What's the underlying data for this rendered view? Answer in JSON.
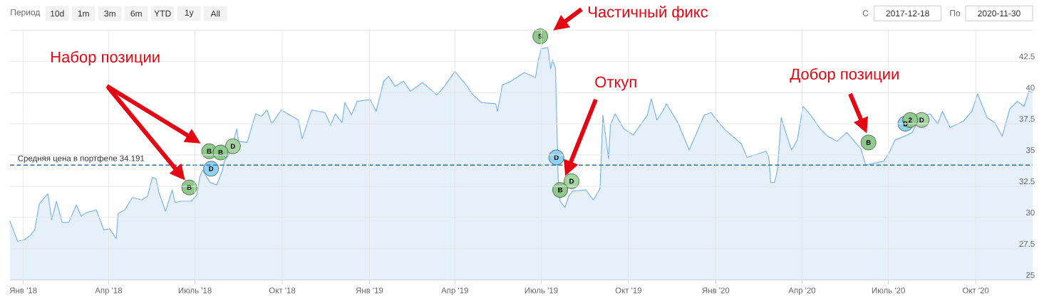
{
  "chart_data": {
    "type": "area",
    "x": [
      "2017-12-18",
      "2017-12-26",
      "2018-01-02",
      "2018-01-09",
      "2018-01-13",
      "2018-01-18",
      "2018-01-27",
      "2018-01-31",
      "2018-02-05",
      "2018-02-11",
      "2018-02-18",
      "2018-02-26",
      "2018-03-03",
      "2018-03-09",
      "2018-03-19",
      "2018-03-27",
      "2018-04-02",
      "2018-04-09",
      "2018-04-11",
      "2018-04-18",
      "2018-04-26",
      "2018-05-06",
      "2018-05-12",
      "2018-05-17",
      "2018-05-21",
      "2018-05-24",
      "2018-05-31",
      "2018-06-07",
      "2018-06-10",
      "2018-06-16",
      "2018-06-27",
      "2018-07-03",
      "2018-07-06",
      "2018-07-09",
      "2018-07-17",
      "2018-07-24",
      "2018-07-30",
      "2018-08-01",
      "2018-08-08",
      "2018-08-14",
      "2018-08-16",
      "2018-08-25",
      "2018-09-03",
      "2018-09-09",
      "2018-09-15",
      "2018-09-20",
      "2018-09-30",
      "2018-10-18",
      "2018-10-22",
      "2018-11-01",
      "2018-11-15",
      "2018-11-21",
      "2018-11-26",
      "2018-12-03",
      "2018-12-06",
      "2018-12-13",
      "2018-12-19",
      "2018-12-29",
      "2019-01-02",
      "2019-01-08",
      "2019-01-16",
      "2019-01-21",
      "2019-01-28",
      "2019-02-06",
      "2019-02-13",
      "2019-02-26",
      "2019-03-13",
      "2019-03-21",
      "2019-04-01",
      "2019-04-14",
      "2019-04-19",
      "2019-04-29",
      "2019-05-14",
      "2019-05-16",
      "2019-05-21",
      "2019-05-30",
      "2019-06-13",
      "2019-06-25",
      "2019-06-28",
      "2019-07-01",
      "2019-07-08",
      "2019-07-11",
      "2019-07-13",
      "2019-07-16",
      "2019-07-19",
      "2019-07-21",
      "2019-07-26",
      "2019-07-30",
      "2019-08-03",
      "2019-08-17",
      "2019-08-25",
      "2019-09-01",
      "2019-09-04",
      "2019-09-10",
      "2019-09-12",
      "2019-09-17",
      "2019-09-26",
      "2019-10-06",
      "2019-10-21",
      "2019-10-25",
      "2019-10-31",
      "2019-11-06",
      "2019-11-10",
      "2019-11-22",
      "2019-11-28",
      "2019-12-04",
      "2019-12-20",
      "2019-12-27",
      "2020-01-02",
      "2020-01-11",
      "2020-01-28",
      "2020-02-03",
      "2020-02-23",
      "2020-02-26",
      "2020-02-28",
      "2020-03-03",
      "2020-03-06",
      "2020-03-10",
      "2020-03-16",
      "2020-03-21",
      "2020-03-27",
      "2020-04-02",
      "2020-04-10",
      "2020-04-20",
      "2020-04-28",
      "2020-05-08",
      "2020-05-18",
      "2020-06-02",
      "2020-06-07",
      "2020-06-26",
      "2020-07-02",
      "2020-07-08",
      "2020-07-18",
      "2020-07-26",
      "2020-08-03",
      "2020-08-14",
      "2020-08-22",
      "2020-08-27",
      "2020-09-04",
      "2020-09-18",
      "2020-09-27",
      "2020-10-03",
      "2020-10-13",
      "2020-10-21",
      "2020-10-29",
      "2020-11-06",
      "2020-11-14",
      "2020-11-21",
      "2020-11-26",
      "2020-11-30"
    ],
    "series": [
      {
        "color": "#7cb5ec",
        "values": [
          29.7,
          28.1,
          28.2,
          28.6,
          29.0,
          31.1,
          31.9,
          29.8,
          31.3,
          29.6,
          29.6,
          31.0,
          30.1,
          30.4,
          30.6,
          29.0,
          29.1,
          28.3,
          30.3,
          30.6,
          31.6,
          31.4,
          31.7,
          33.2,
          33.1,
          32.0,
          30.5,
          32.2,
          31.2,
          31.3,
          31.3,
          31.8,
          33.2,
          33.8,
          32.8,
          32.6,
          33.8,
          34.5,
          35.3,
          37.1,
          36.1,
          36.0,
          38.3,
          38.1,
          38.6,
          37.5,
          38.6,
          37.8,
          36.3,
          38.6,
          38.4,
          37.4,
          38.3,
          37.6,
          39.2,
          38.2,
          39.3,
          39.4,
          39.4,
          38.5,
          40.9,
          41.3,
          40.5,
          40.9,
          40.1,
          40.8,
          39.8,
          40.5,
          41.7,
          40.5,
          39.9,
          39.2,
          39.1,
          38.5,
          40.6,
          40.9,
          41.6,
          41.2,
          42.6,
          43.5,
          43.6,
          41.9,
          42.6,
          42.0,
          32.9,
          31.3,
          30.8,
          31.7,
          32.1,
          32.2,
          31.4,
          32.3,
          38.2,
          34.7,
          37.4,
          38.3,
          37.1,
          36.6,
          38.2,
          39.5,
          37.8,
          38.5,
          39.1,
          37.6,
          36.5,
          35.4,
          38.2,
          38.4,
          37.8,
          37.0,
          35.9,
          34.8,
          35.3,
          34.8,
          32.8,
          32.8,
          33.8,
          38.0,
          36.5,
          35.4,
          36.2,
          38.9,
          38.2,
          37.1,
          36.5,
          36.1,
          36.8,
          35.5,
          34.2,
          34.5,
          35.2,
          36.2,
          36.5,
          36.8,
          38.0,
          38.3,
          37.5,
          38.5,
          37.2,
          37.7,
          38.5,
          39.9,
          38.0,
          37.6,
          36.5,
          38.7,
          39.3,
          38.9,
          40.1,
          40.0
        ]
      },
      {
        "type": "scatter",
        "color": "#8ed2f6",
        "x": [
          "2018-07-18",
          "2019-07-17",
          "2020-07-19"
        ],
        "values": [
          33.9,
          34.8,
          37.5
        ]
      },
      {
        "type": "scatter",
        "color": "#a5d6a2",
        "x": [
          "2018-08-10",
          "2019-08-02",
          "2020-08-05"
        ],
        "values": [
          35.7,
          32.9,
          37.8
        ]
      },
      {
        "type": "scatter",
        "color": "#8fca8c",
        "x": [
          "2018-06-25",
          "2018-07-16",
          "2018-07-28",
          "2019-06-30",
          "2019-07-21",
          "2020-06-10",
          "2020-07-24"
        ],
        "values": [
          32.4,
          35.3,
          35.2,
          44.5,
          32.2,
          36.0,
          37.8
        ]
      }
    ],
    "xlim": [
      "2017-12-18",
      "2020-11-30"
    ],
    "xticks": [
      {
        "value": "2018-01-01",
        "label": "Янв '18"
      },
      {
        "value": "2018-04-01",
        "label": "Апр '18"
      },
      {
        "value": "2018-07-01",
        "label": "Июль '18"
      },
      {
        "value": "2018-10-01",
        "label": "Окт '18"
      },
      {
        "value": "2019-01-01",
        "label": "Янв '19"
      },
      {
        "value": "2019-04-01",
        "label": "Апр '19"
      },
      {
        "value": "2019-07-01",
        "label": "Июль '19"
      },
      {
        "value": "2019-10-01",
        "label": "Окт '19"
      },
      {
        "value": "2020-01-01",
        "label": "Янв '20"
      },
      {
        "value": "2020-04-01",
        "label": "Апр '20"
      },
      {
        "value": "2020-07-01",
        "label": "Июль '20"
      },
      {
        "value": "2020-10-01",
        "label": "Окт '20"
      }
    ],
    "ylim": [
      25,
      45
    ],
    "yticks": [
      25,
      27.5,
      30,
      32.5,
      35,
      37.5,
      40,
      42.5,
      {
        "value": 45,
        "label": null
      }
    ],
    "grid": true,
    "ref_lines": [
      {
        "axis": "y",
        "value": 34.191,
        "label": "Средняя цена в портфеле 34.191",
        "color": "#2f6eaa",
        "line_style": "dashed"
      }
    ],
    "annotations": [
      "Период",
      "10d",
      "1m",
      "3m",
      "6m",
      "YTD",
      "1y",
      "All",
      "С",
      "2017-12-18",
      "По",
      "2020-11-30",
      "Набор позиции",
      "Частичный фикс",
      "Откуп",
      "Добор позиции",
      {
        "text": "D",
        "x": "2018-07-18",
        "y": 33.9
      },
      {
        "text": "D",
        "x": "2019-07-17",
        "y": 34.8
      },
      {
        "text": "D",
        "x": "2020-07-19",
        "y": 37.5
      },
      {
        "text": "D",
        "x": "2018-08-10",
        "y": 35.7
      },
      {
        "text": "D",
        "x": "2019-08-02",
        "y": 32.9
      },
      {
        "text": "D",
        "x": "2020-08-05",
        "y": 37.8
      },
      {
        "text": "B",
        "x": "2018-06-25",
        "y": 32.4
      },
      {
        "text": "B",
        "x": "2018-07-16",
        "y": 35.3
      },
      {
        "text": "B",
        "x": "2018-07-28",
        "y": 35.2
      },
      {
        "text": "S",
        "x": "2019-06-30",
        "y": 44.5
      },
      {
        "text": "B",
        "x": "2019-07-21",
        "y": 32.2
      },
      {
        "text": "B",
        "x": "2020-06-10",
        "y": 36.0
      },
      {
        "text": "2",
        "x": "2020-07-24",
        "y": 37.8
      }
    ]
  }
}
